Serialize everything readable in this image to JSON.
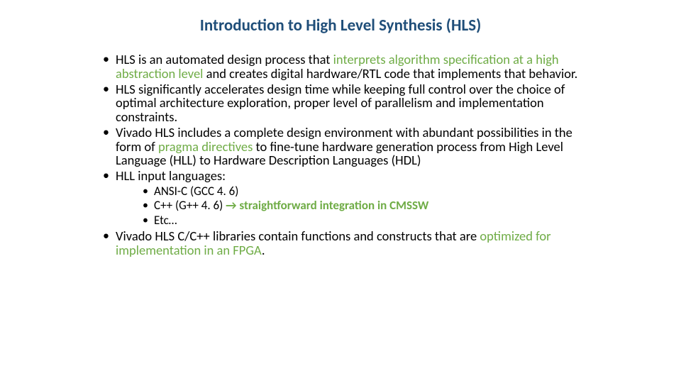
{
  "title": "Introduction to High Level Synthesis (HLS)",
  "title_color": "#1f4e79",
  "highlight_color": "#6fac46",
  "text_color": "#000000",
  "background_color": "#ffffff",
  "title_fontsize": 23,
  "body_fontsize": 18.5,
  "inner_fontsize": 17,
  "bullets": {
    "b1_p1": "HLS is an automated design process that ",
    "b1_h1": "interprets algorithm specification at a high abstraction level ",
    "b1_p2": "and creates digital hardware/RTL code that implements that behavior.",
    "b2": "HLS significantly accelerates design time while keeping full control over the choice of optimal architecture exploration, proper level of parallelism and implementation constraints.",
    "b3_p1": "Vivado HLS includes a complete design environment with abundant possibilities in the form of ",
    "b3_h1": "pragma directives ",
    "b3_p2": "to fine-tune hardware generation process from High Level Language (HLL) to  Hardware Description Languages (HDL)",
    "b4": "HLL input languages:",
    "b4_s1": "ANSI-C (GCC 4. 6)",
    "b4_s2_p1": "C++ (G++ 4. 6) ",
    "b4_s2_arrow": "→",
    "b4_s2_h1": " straightforward integration in CMSSW",
    "b4_s3": "Etc…",
    "b5_p1": "Vivado HLS C/C++ libraries contain functions and constructs that are ",
    "b5_h1": "optimized for implementation in an FPGA",
    "b5_p2": "."
  }
}
